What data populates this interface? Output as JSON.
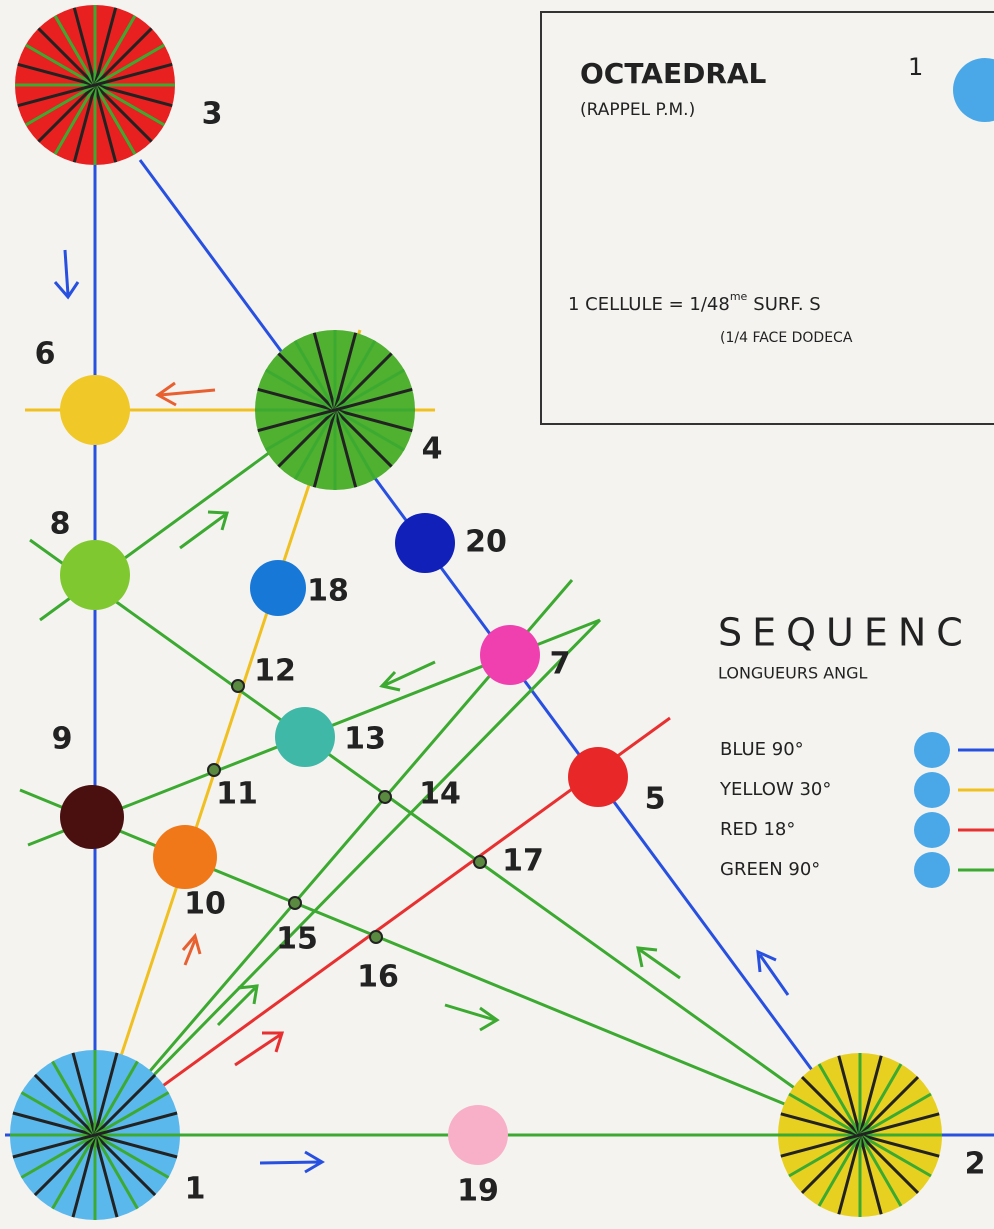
{
  "box": {
    "title": "OCTAEDRAL",
    "subtitle": "(RAPPEL P.M.)",
    "index": "1",
    "note": [
      "1 CELLULE = 1/48",
      "me",
      "SURF. S"
    ],
    "note2": "(1/4 FACE DODECA"
  },
  "sequence": {
    "title": "SEQUENC",
    "subtitle": "LONGUEURS ANGL",
    "legend": [
      "BLUE 90°",
      "YELLOW 30°",
      "RED 18°",
      "GREEN 90°"
    ]
  },
  "nodes": [
    {
      "label": "1"
    },
    {
      "label": "2"
    },
    {
      "label": "3"
    },
    {
      "label": "4"
    },
    {
      "label": "5"
    },
    {
      "label": "6"
    },
    {
      "label": "7"
    },
    {
      "label": "8"
    },
    {
      "label": "9"
    },
    {
      "label": "10"
    },
    {
      "label": "11"
    },
    {
      "label": "12"
    },
    {
      "label": "13"
    },
    {
      "label": "14"
    },
    {
      "label": "15"
    },
    {
      "label": "16"
    },
    {
      "label": "17"
    },
    {
      "label": "18"
    },
    {
      "label": "19"
    },
    {
      "label": "20"
    }
  ]
}
